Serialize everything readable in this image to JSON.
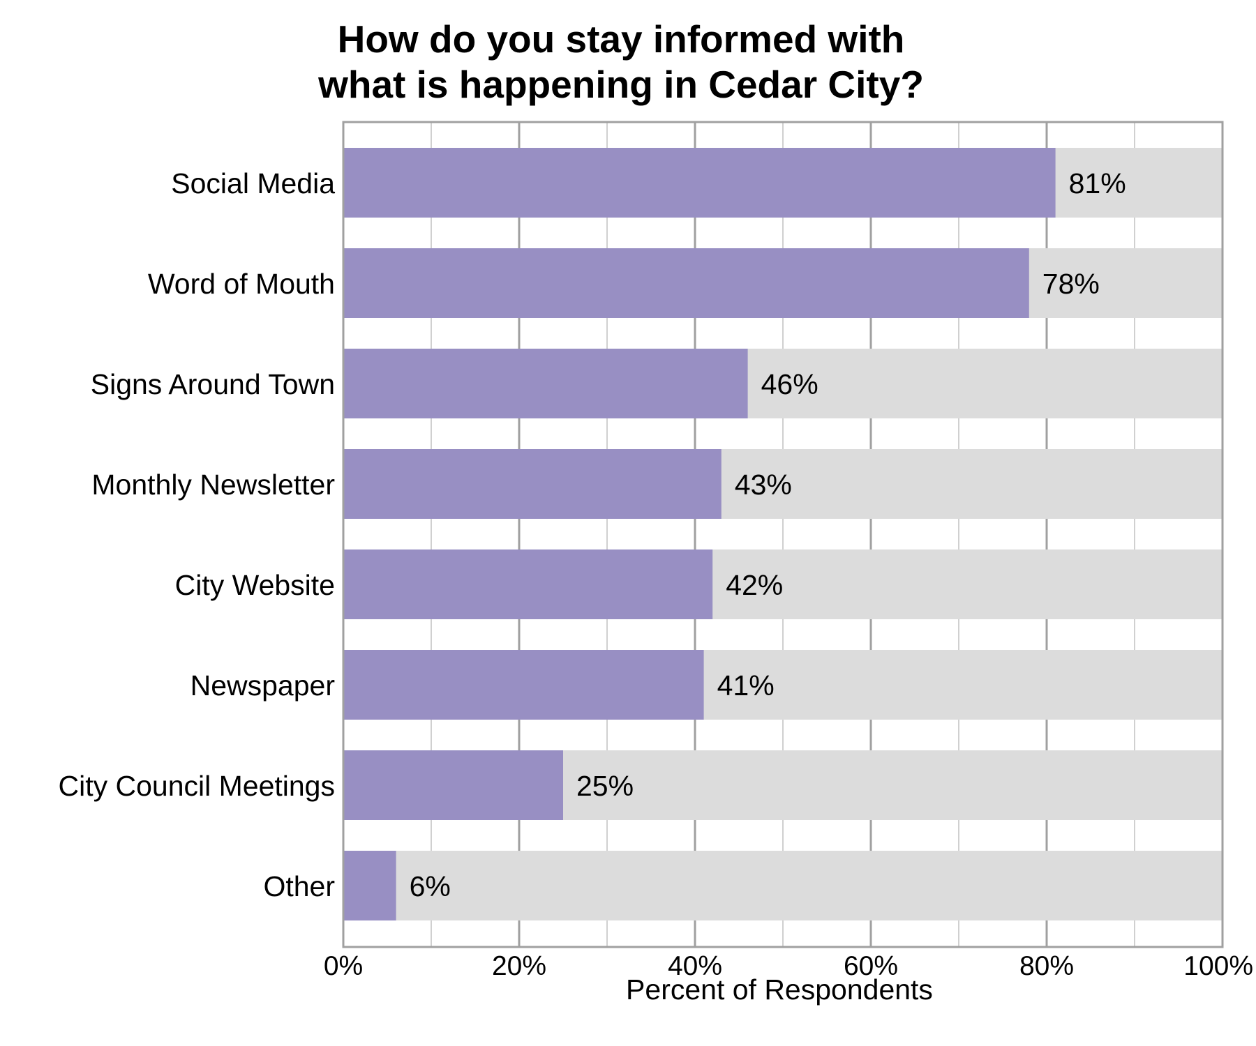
{
  "chart_data": {
    "type": "bar",
    "orientation": "horizontal",
    "title": [
      "How do you stay informed with",
      "what is happening in Cedar City?"
    ],
    "xlabel": "Percent of Respondents",
    "ylabel": "",
    "xlim": [
      0,
      100
    ],
    "x_ticks": [
      "0%",
      "20%",
      "40%",
      "60%",
      "80%",
      "100%"
    ],
    "categories": [
      "Social Media",
      "Word of Mouth",
      "Signs Around Town",
      "Monthly Newsletter",
      "City Website",
      "Newspaper",
      "City Council Meetings",
      "Other"
    ],
    "values": [
      81,
      78,
      46,
      43,
      42,
      41,
      25,
      6
    ],
    "value_labels": [
      "81%",
      "78%",
      "46%",
      "43%",
      "42%",
      "41%",
      "25%",
      "6%"
    ],
    "grid": true,
    "bar_color": "#988fc3",
    "track_color": "#dcdcdc",
    "grid_major_color": "#a0a0a0",
    "grid_minor_color": "#d0d0d0",
    "frame_color": "#a0a0a0"
  }
}
